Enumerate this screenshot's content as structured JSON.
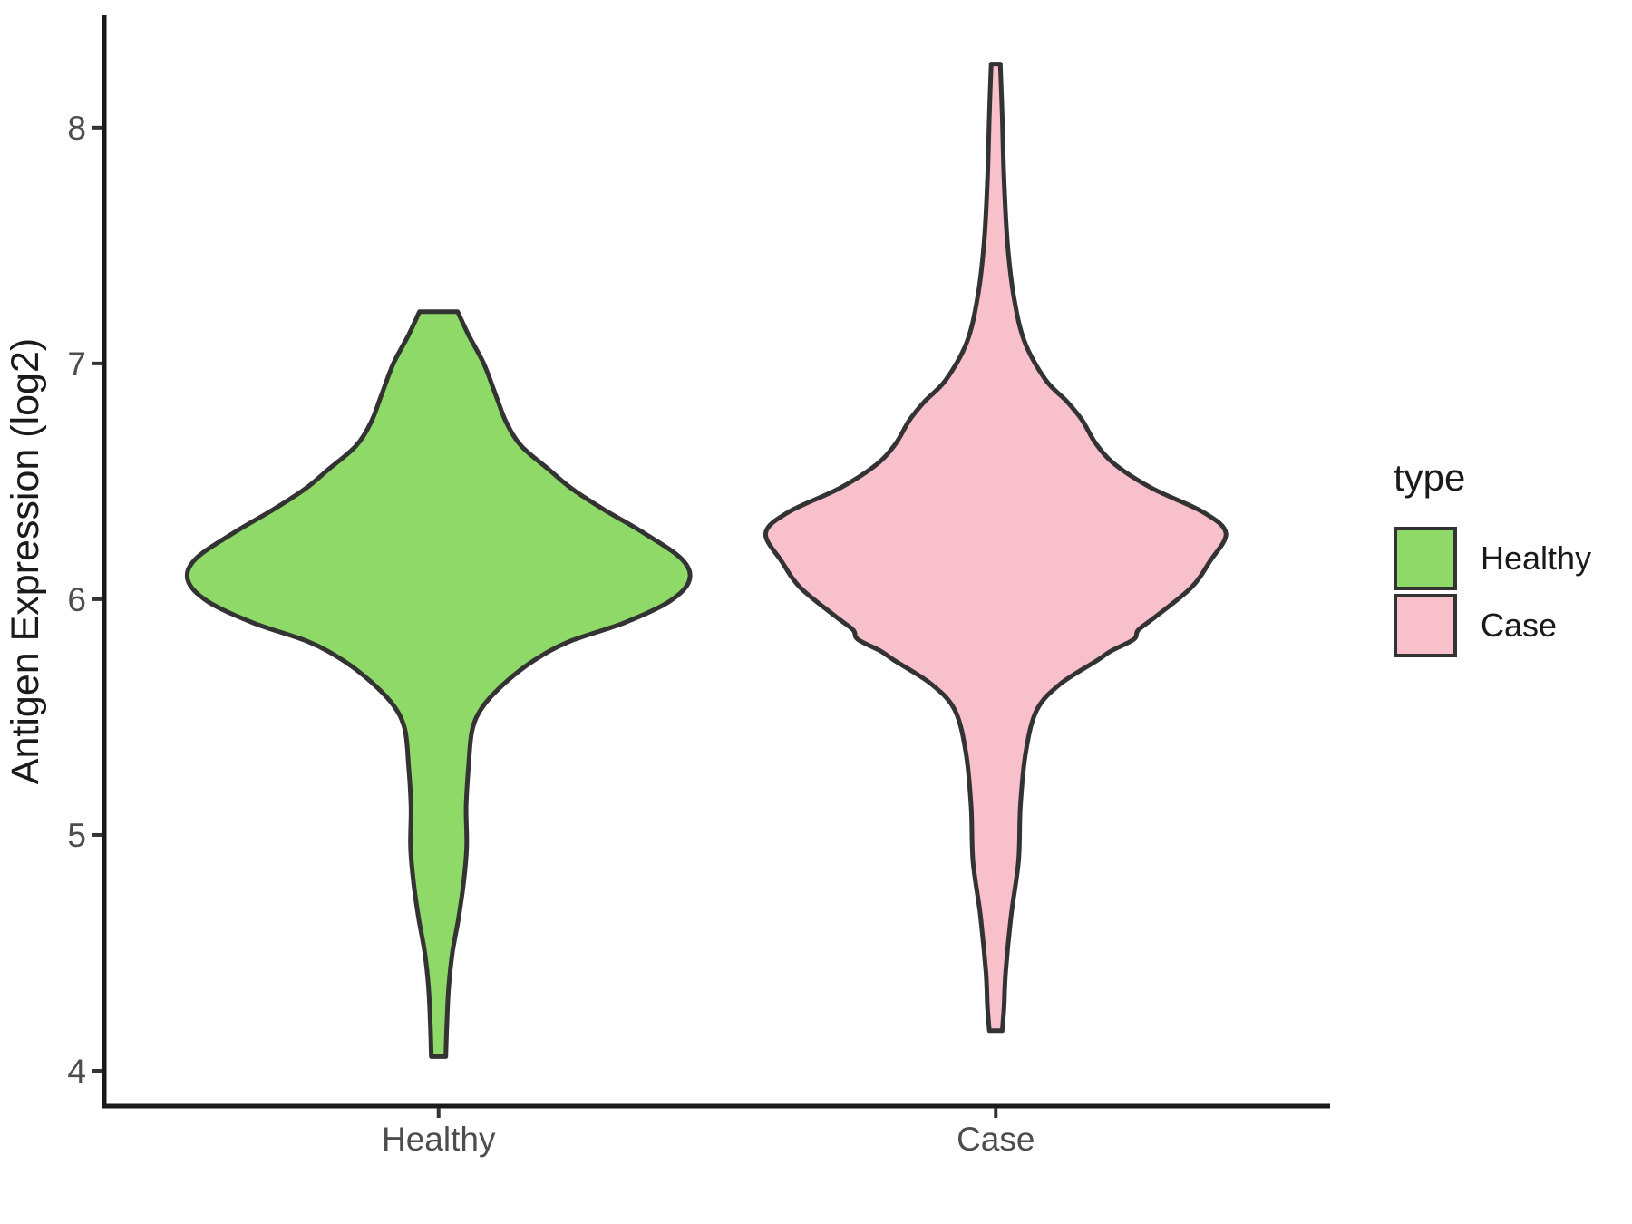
{
  "chart_data": {
    "type": "violin",
    "title": "",
    "xlabel": "",
    "ylabel": "Antigen Expression (log2)",
    "categories": [
      "Healthy",
      "Case"
    ],
    "yticks": [
      "4",
      "5",
      "6",
      "7",
      "8"
    ],
    "ytick_values": [
      4,
      5,
      6,
      7,
      8
    ],
    "ylim": [
      3.85,
      8.48
    ],
    "grid": false,
    "legend_position": "right",
    "colors": {
      "healthy_fill": "#8FD968",
      "case_fill": "#F8C0CB",
      "outline": "#333333",
      "axis_line": "#1A1A1A",
      "tick_mark": "#333333",
      "tick_label": "#4D4D4D",
      "text": "#1A1A1A"
    },
    "legend": {
      "title": "type",
      "entries": [
        {
          "label": "Healthy",
          "color": "#8FD968"
        },
        {
          "label": "Case",
          "color": "#F8C0CB"
        }
      ]
    },
    "series": [
      {
        "name": "Healthy",
        "color": "#8FD968",
        "max_halfwidth_frac": 0.45,
        "y_min": 4.06,
        "y_max": 7.22,
        "profile": [
          [
            7.22,
            0.076
          ],
          [
            7.12,
            0.12
          ],
          [
            7.0,
            0.18
          ],
          [
            6.86,
            0.23
          ],
          [
            6.75,
            0.27
          ],
          [
            6.65,
            0.33
          ],
          [
            6.55,
            0.44
          ],
          [
            6.47,
            0.53
          ],
          [
            6.38,
            0.66
          ],
          [
            6.28,
            0.82
          ],
          [
            6.17,
            0.97
          ],
          [
            6.08,
            1.0
          ],
          [
            5.99,
            0.92
          ],
          [
            5.9,
            0.74
          ],
          [
            5.82,
            0.52
          ],
          [
            5.74,
            0.38
          ],
          [
            5.65,
            0.27
          ],
          [
            5.55,
            0.18
          ],
          [
            5.45,
            0.135
          ],
          [
            5.3,
            0.12
          ],
          [
            5.12,
            0.11
          ],
          [
            4.95,
            0.112
          ],
          [
            4.8,
            0.1
          ],
          [
            4.65,
            0.08
          ],
          [
            4.5,
            0.055
          ],
          [
            4.35,
            0.04
          ],
          [
            4.2,
            0.033
          ],
          [
            4.06,
            0.029
          ]
        ]
      },
      {
        "name": "Case",
        "color": "#F8C0CB",
        "max_halfwidth_frac": 0.413,
        "y_min": 4.17,
        "y_max": 8.27,
        "profile": [
          [
            8.27,
            0.02
          ],
          [
            8.05,
            0.028
          ],
          [
            7.78,
            0.036
          ],
          [
            7.51,
            0.051
          ],
          [
            7.28,
            0.079
          ],
          [
            7.09,
            0.126
          ],
          [
            6.93,
            0.217
          ],
          [
            6.84,
            0.308
          ],
          [
            6.76,
            0.375
          ],
          [
            6.66,
            0.435
          ],
          [
            6.57,
            0.52
          ],
          [
            6.47,
            0.68
          ],
          [
            6.37,
            0.9
          ],
          [
            6.28,
            1.0
          ],
          [
            6.16,
            0.93
          ],
          [
            6.05,
            0.85
          ],
          [
            5.93,
            0.7
          ],
          [
            5.87,
            0.62
          ],
          [
            5.83,
            0.6
          ],
          [
            5.78,
            0.5
          ],
          [
            5.74,
            0.44
          ],
          [
            5.64,
            0.28
          ],
          [
            5.53,
            0.178
          ],
          [
            5.35,
            0.13
          ],
          [
            5.12,
            0.107
          ],
          [
            4.89,
            0.099
          ],
          [
            4.66,
            0.067
          ],
          [
            4.42,
            0.043
          ],
          [
            4.27,
            0.036
          ],
          [
            4.17,
            0.028
          ]
        ]
      }
    ]
  }
}
